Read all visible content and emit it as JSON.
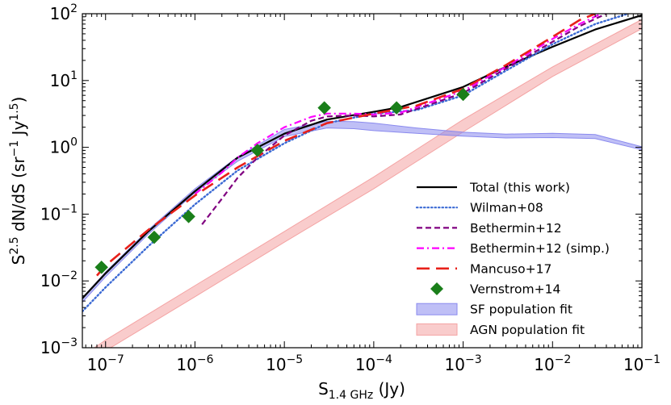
{
  "chart_data": {
    "type": "line",
    "xscale": "log",
    "yscale": "log",
    "xlim": [
      5.5e-08,
      0.1
    ],
    "ylim": [
      0.001,
      100
    ],
    "xlabel": "S",
    "xlabel_sub": "1.4 GHz",
    "xlabel_unit": "(Jy)",
    "ylabel": "S",
    "ylabel_sup": "2.5",
    "ylabel_mid": " dN/dS (sr",
    "ylabel_sup2": "−1",
    "ylabel_mid2": " Jy",
    "ylabel_sup3": "1.5",
    "ylabel_end": ")",
    "x_ticks": [
      {
        "value": 1e-07,
        "base": "10",
        "exp": "−7"
      },
      {
        "value": 1e-06,
        "base": "10",
        "exp": "−6"
      },
      {
        "value": 1e-05,
        "base": "10",
        "exp": "−5"
      },
      {
        "value": 0.0001,
        "base": "10",
        "exp": "−4"
      },
      {
        "value": 0.001,
        "base": "10",
        "exp": "−3"
      },
      {
        "value": 0.01,
        "base": "10",
        "exp": "−2"
      },
      {
        "value": 0.1,
        "base": "10",
        "exp": "−1"
      }
    ],
    "y_ticks": [
      {
        "value": 0.001,
        "base": "10",
        "exp": "−3"
      },
      {
        "value": 0.01,
        "base": "10",
        "exp": "−2"
      },
      {
        "value": 0.1,
        "base": "10",
        "exp": "−1"
      },
      {
        "value": 1,
        "base": "10",
        "exp": "0"
      },
      {
        "value": 10,
        "base": "10",
        "exp": "1"
      },
      {
        "value": 100,
        "base": "10",
        "exp": "2"
      }
    ],
    "bands": [
      {
        "name": "AGN population fit",
        "color": "#f4a3a3",
        "x": [
          5.5e-08,
          1e-07,
          1e-06,
          1e-05,
          0.0001,
          0.001,
          0.01,
          0.1
        ],
        "lower": [
          0.00055,
          0.0009,
          0.0058,
          0.038,
          0.24,
          1.7,
          11.5,
          60
        ],
        "upper": [
          0.00075,
          0.0013,
          0.0085,
          0.055,
          0.36,
          2.6,
          16.0,
          82
        ]
      },
      {
        "name": "SF population fit",
        "color": "#8a8aee",
        "x": [
          5.5e-08,
          1e-07,
          3e-07,
          1e-06,
          3e-06,
          1e-05,
          3e-05,
          6e-05,
          0.0001,
          0.0003,
          0.001,
          0.003,
          0.01,
          0.03,
          0.1
        ],
        "lower": [
          0.0048,
          0.0115,
          0.05,
          0.21,
          0.62,
          1.45,
          1.95,
          1.9,
          1.78,
          1.62,
          1.47,
          1.38,
          1.4,
          1.35,
          0.92
        ],
        "upper": [
          0.0056,
          0.0135,
          0.058,
          0.24,
          0.72,
          1.85,
          2.45,
          2.42,
          2.3,
          1.95,
          1.68,
          1.58,
          1.62,
          1.55,
          1.02
        ]
      }
    ],
    "series": [
      {
        "name": "Total (this work)",
        "color": "#000000",
        "style": "solid",
        "width": 2.2,
        "x": [
          5.5e-08,
          1e-07,
          3e-07,
          1e-06,
          3e-06,
          1e-05,
          3e-05,
          0.0001,
          0.0002,
          0.001,
          0.003,
          0.01,
          0.03,
          0.1
        ],
        "y": [
          0.0055,
          0.013,
          0.055,
          0.22,
          0.7,
          1.6,
          2.6,
          3.4,
          4.0,
          8.0,
          16.0,
          32.0,
          58.0,
          95.0
        ]
      },
      {
        "name": "Wilman+08",
        "color": "#3b6ad4",
        "style": "dotted",
        "width": 2.4,
        "x": [
          5.5e-08,
          1e-07,
          3e-07,
          1e-06,
          3e-06,
          1e-05,
          3e-05,
          0.0001,
          0.0003,
          0.001,
          0.003,
          0.01,
          0.03,
          0.07
        ],
        "y": [
          0.0035,
          0.008,
          0.033,
          0.14,
          0.45,
          1.15,
          2.3,
          3.2,
          3.6,
          6.0,
          14.0,
          35.0,
          70.0,
          100.0
        ]
      },
      {
        "name": "Bethermin+12",
        "color": "#800080",
        "style": "dashed",
        "width": 2.2,
        "x": [
          1.2e-06,
          2e-06,
          3e-06,
          5e-06,
          1e-05,
          2e-05,
          3e-05,
          6e-05,
          0.0001,
          0.0002,
          0.001,
          0.003,
          0.01,
          0.02,
          0.04
        ],
        "y": [
          0.07,
          0.17,
          0.35,
          0.7,
          1.5,
          2.5,
          2.9,
          3.0,
          2.9,
          3.1,
          6.5,
          15.0,
          38.0,
          65.0,
          100.0
        ]
      },
      {
        "name": "Bethermin+12 (simp.)",
        "color": "#ff00ff",
        "style": "dashdot",
        "width": 2.2,
        "x": [
          1e-06,
          2e-06,
          3e-06,
          5e-06,
          1e-05,
          2e-05,
          3e-05,
          6e-05,
          0.0001,
          0.0002,
          0.001,
          0.003,
          0.01,
          0.02,
          0.035
        ],
        "y": [
          0.2,
          0.42,
          0.7,
          1.15,
          2.0,
          2.85,
          3.2,
          3.2,
          3.1,
          3.3,
          7.0,
          16.0,
          42.0,
          70.0,
          100.0
        ]
      },
      {
        "name": "Mancuso+17",
        "color": "#e8201a",
        "style": "longdash",
        "width": 2.6,
        "x": [
          8e-08,
          1e-07,
          3e-07,
          1e-06,
          3e-06,
          1e-05,
          3e-05,
          0.0001,
          0.0003,
          0.001,
          0.003,
          0.01,
          0.02,
          0.03
        ],
        "y": [
          0.012,
          0.017,
          0.058,
          0.19,
          0.5,
          1.25,
          2.3,
          3.2,
          4.2,
          7.5,
          17.0,
          45.0,
          80.0,
          100.0
        ]
      },
      {
        "name": "Vernstrom+14",
        "color": "#1a7f1a",
        "style": "markers",
        "marker": "diamond",
        "x": [
          9e-08,
          3.5e-07,
          8.5e-07,
          5e-06,
          2.8e-05,
          0.00018,
          0.001
        ],
        "y": [
          0.016,
          0.045,
          0.092,
          0.9,
          3.9,
          3.9,
          6.2
        ]
      }
    ],
    "legend": {
      "placement": "bottom-right",
      "entries": [
        {
          "label": "Total (this work)",
          "kind": "line",
          "color": "#000000",
          "style": "solid"
        },
        {
          "label": "Wilman+08",
          "kind": "line",
          "color": "#3b6ad4",
          "style": "dotted"
        },
        {
          "label": "Bethermin+12",
          "kind": "line",
          "color": "#800080",
          "style": "dashed"
        },
        {
          "label": "Bethermin+12 (simp.)",
          "kind": "line",
          "color": "#ff00ff",
          "style": "dashdot"
        },
        {
          "label": "Mancuso+17",
          "kind": "line",
          "color": "#e8201a",
          "style": "longdash"
        },
        {
          "label": "Vernstrom+14",
          "kind": "marker",
          "color": "#1a7f1a",
          "style": "diamond"
        },
        {
          "label": "SF population fit",
          "kind": "patch",
          "color": "#8a8aee",
          "style": "fill"
        },
        {
          "label": "AGN population fit",
          "kind": "patch",
          "color": "#f4a3a3",
          "style": "fill"
        }
      ]
    }
  }
}
